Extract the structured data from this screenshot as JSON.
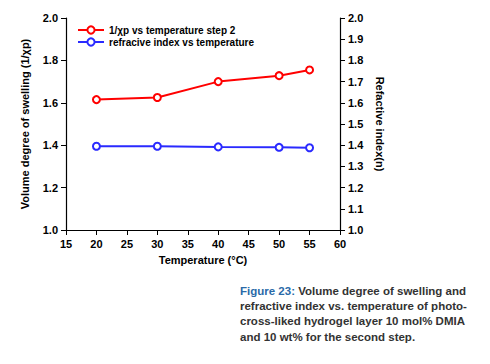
{
  "chart_data": {
    "type": "line",
    "x": [
      20,
      30,
      40,
      50,
      55
    ],
    "series": [
      {
        "name": "1/χp vs temperature step 2",
        "color": "#ff0000",
        "marker": "circle",
        "values": [
          1.615,
          1.625,
          1.7,
          1.728,
          1.755
        ]
      },
      {
        "name": "refracive index vs temperature",
        "color": "#2a2aff",
        "marker": "circle",
        "axis": "y2",
        "values": [
          1.395,
          1.395,
          1.392,
          1.39,
          1.388
        ]
      }
    ],
    "xlabel": "Temperature (°C)",
    "ylabel": "Volume degree of swelling (1/χp)",
    "y2label": "Refactive index(n)",
    "xlim": [
      15,
      60
    ],
    "xticks": [
      15,
      20,
      25,
      30,
      35,
      40,
      45,
      50,
      55,
      60
    ],
    "ylim": [
      1.0,
      2.0
    ],
    "yticks": [
      {
        "value": 1.0,
        "label": "1.0"
      },
      1.2,
      1.4,
      1.6,
      1.8,
      {
        "value": 2.0,
        "label": "2.0"
      }
    ],
    "y2lim": [
      1.0,
      2.0
    ],
    "y2ticks": [
      {
        "value": 1.0,
        "label": "1.0"
      },
      1.1,
      1.2,
      1.3,
      1.4,
      1.5,
      1.6,
      1.7,
      1.8,
      1.9,
      {
        "value": 2.0,
        "label": "2.0"
      }
    ],
    "grid": false,
    "legend": "upper left",
    "caption": {
      "label": "Figure 23:",
      "text": "Volume degree of swelling and refractive index vs. temperature of photo-cross-liked hydrogel layer 10 mol% DMIA and 10 wt% for the second step."
    }
  }
}
